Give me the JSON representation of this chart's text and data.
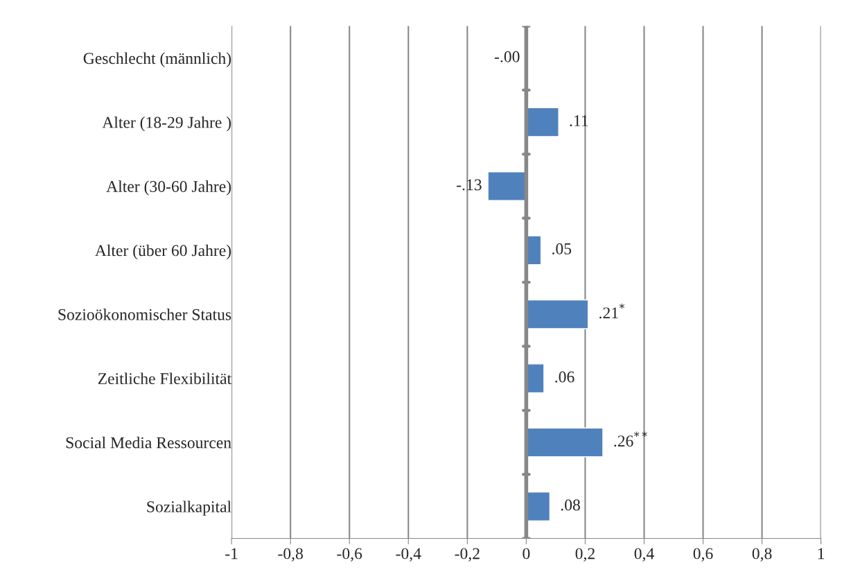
{
  "chart_data": {
    "type": "bar",
    "orientation": "horizontal",
    "categories": [
      "Geschlecht (männlich)",
      "Alter (18-29 Jahre )",
      "Alter (30-60 Jahre)",
      "Alter (über 60 Jahre)",
      "Sozioökonomischer Status",
      "Zeitliche Flexibilität",
      "Social Media Ressourcen",
      "Sozialkapital"
    ],
    "values": [
      -0.001,
      0.11,
      -0.13,
      0.05,
      0.21,
      0.06,
      0.26,
      0.08
    ],
    "value_labels": [
      "-.00",
      ".11",
      "-.13",
      ".05",
      ".21$^{*}$",
      ".06",
      ".26$^{**}$",
      ".08"
    ],
    "color": "#4f81bd",
    "xlim": [
      -1,
      1
    ],
    "xticks": [
      {
        "value": -1,
        "label": "-1"
      },
      {
        "value": -0.8,
        "label": "-0,8"
      },
      {
        "value": -0.6,
        "label": "-0,6"
      },
      {
        "value": -0.4,
        "label": "-0,4"
      },
      {
        "value": -0.2,
        "label": "-0,2"
      },
      0,
      {
        "value": 0.2,
        "label": "0,2"
      },
      {
        "value": 0.4,
        "label": "0,4"
      },
      {
        "value": 0.6,
        "label": "0,6"
      },
      {
        "value": 0.8,
        "label": "0,8"
      },
      1
    ],
    "grid": "x"
  }
}
